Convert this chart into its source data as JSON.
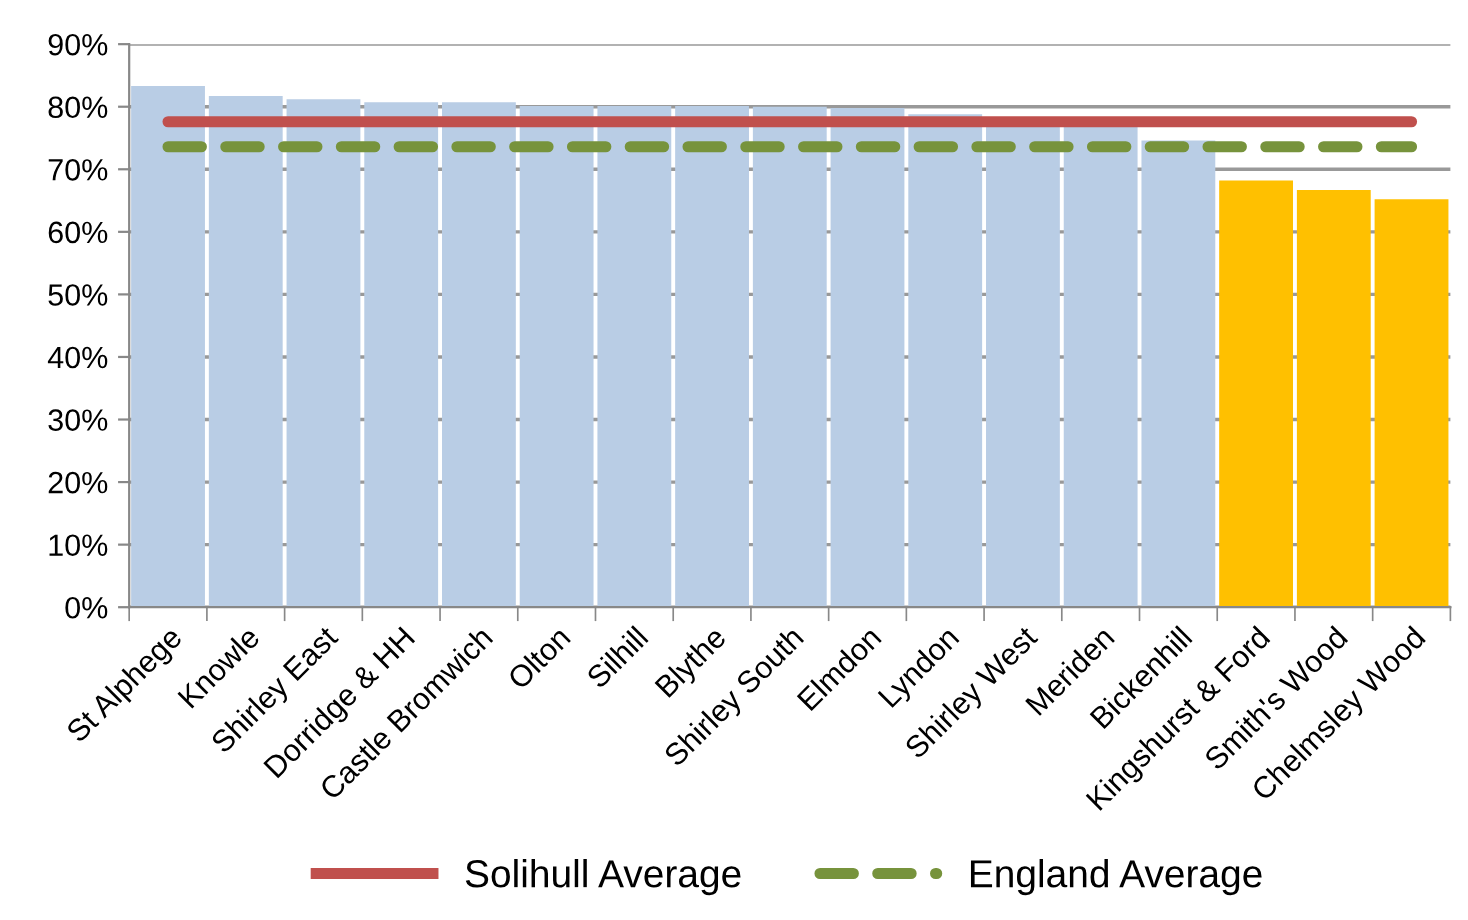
{
  "chart_data": {
    "type": "bar",
    "categories": [
      "St Alphege",
      "Knowle",
      "Shirley East",
      "Dorridge & HH",
      "Castle Bromwich",
      "Olton",
      "Silhill",
      "Blythe",
      "Shirley South",
      "Elmdon",
      "Lyndon",
      "Shirley West",
      "Meriden",
      "Bickenhill",
      "Kingshurst & Ford",
      "Smith's Wood",
      "Chelmsley Wood"
    ],
    "series": [
      {
        "colors": [
          "#b9cde5",
          "#b9cde5",
          "#b9cde5",
          "#b9cde5",
          "#b9cde5",
          "#b9cde5",
          "#b9cde5",
          "#b9cde5",
          "#b9cde5",
          "#b9cde5",
          "#b9cde5",
          "#b9cde5",
          "#b9cde5",
          "#b9cde5",
          "#ffc000",
          "#ffc000",
          "#ffc000"
        ],
        "values": [
          83.3,
          81.7,
          81.2,
          80.7,
          80.7,
          80.1,
          80.1,
          80.1,
          80.0,
          79.8,
          78.8,
          77.8,
          77.5,
          74.6,
          68.2,
          66.7,
          65.2
        ]
      },
      {
        "type": "line",
        "name": "Solihull Average",
        "color": "#c0504d",
        "line_style": "solid",
        "values": [
          77.6,
          77.6,
          77.6,
          77.6,
          77.6,
          77.6,
          77.6,
          77.6,
          77.6,
          77.6,
          77.6,
          77.6,
          77.6,
          77.6,
          77.6,
          77.6,
          77.6
        ]
      },
      {
        "type": "line",
        "name": "England Average",
        "color": "#77933c",
        "line_style": "dashed",
        "values": [
          73.6,
          73.6,
          73.6,
          73.6,
          73.6,
          73.6,
          73.6,
          73.6,
          73.6,
          73.6,
          73.6,
          73.6,
          73.6,
          73.6,
          73.6,
          73.6,
          73.6
        ]
      }
    ],
    "ylim": [
      0,
      90
    ],
    "yticks": [
      {
        "value": 0,
        "label": "0%"
      },
      {
        "value": 10,
        "label": "10%"
      },
      {
        "value": 20,
        "label": "20%"
      },
      {
        "value": 30,
        "label": "30%"
      },
      {
        "value": 40,
        "label": "40%"
      },
      {
        "value": 50,
        "label": "50%"
      },
      {
        "value": 60,
        "label": "60%"
      },
      {
        "value": 70,
        "label": "70%"
      },
      {
        "value": 80,
        "label": "80%"
      },
      {
        "value": 90,
        "label": "90%"
      }
    ],
    "grid": "y",
    "legend": "bottom"
  }
}
